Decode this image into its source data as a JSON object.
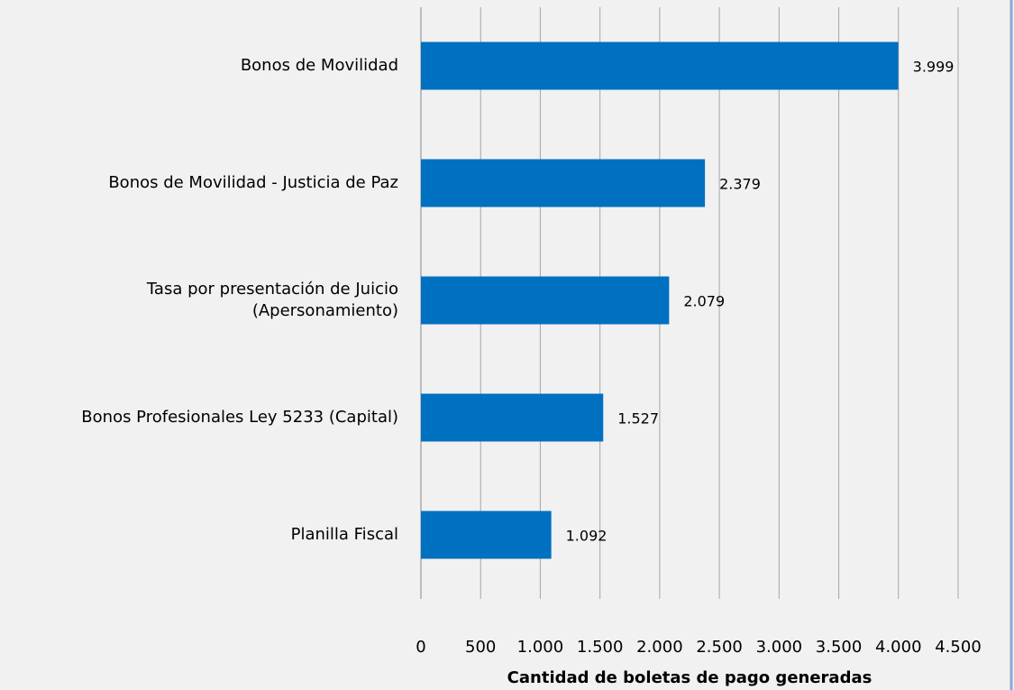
{
  "chart_data": {
    "type": "barh",
    "x_label": "Cantidad de boletas de pago generadas",
    "categories": [
      "Bonos de Movilidad",
      "Bonos de Movilidad - Justicia de Paz",
      "Tasa por presentación de Juicio\n(Apersonamiento)",
      "Bonos Profesionales Ley 5233 (Capital)",
      "Planilla Fiscal"
    ],
    "values": [
      3999,
      2379,
      2079,
      1527,
      1092
    ],
    "value_labels": [
      "3.999",
      "2.379",
      "2.079",
      "1.527",
      "1.092"
    ],
    "color": "#0070c0",
    "xlim": [
      0,
      4500
    ],
    "xticks": [
      0,
      500,
      {
        "value": 1000,
        "label": "1.000"
      },
      {
        "value": 1500,
        "label": "1.500"
      },
      {
        "value": 2000,
        "label": "2.000"
      },
      {
        "value": 2500,
        "label": "2.500"
      },
      {
        "value": 3000,
        "label": "3.000"
      },
      {
        "value": 3500,
        "label": "3.500"
      },
      {
        "value": 4000,
        "label": "4.000"
      },
      {
        "value": 4500,
        "label": "4.500"
      }
    ],
    "grid": true
  }
}
